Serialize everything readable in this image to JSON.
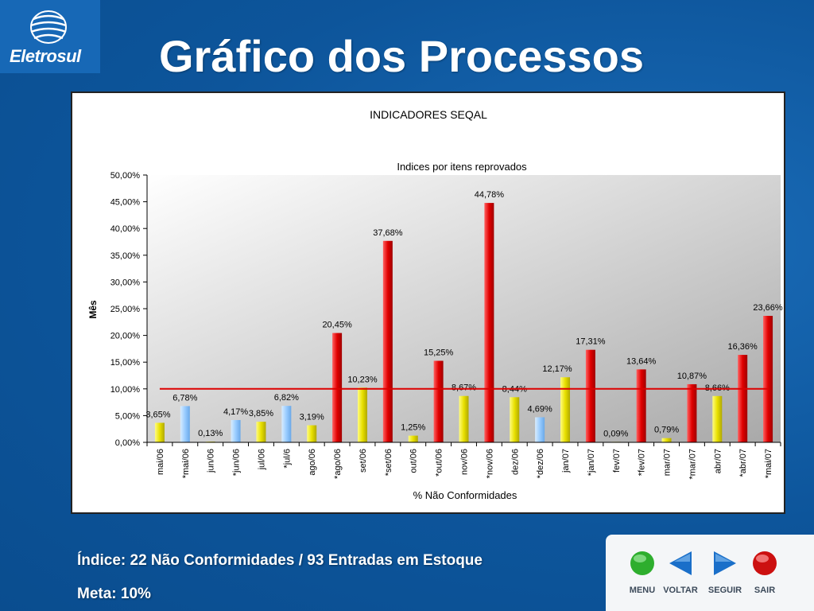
{
  "logo": {
    "text": "Eletrosul"
  },
  "slide": {
    "title": "Gráfico dos Processos",
    "footer_line1": "Índice: 22 Não Conformidades / 93 Entradas em Estoque",
    "footer_line2": "Meta: 10%"
  },
  "nav": {
    "menu": "MENU",
    "back": "VOLTAR",
    "next": "SEGUIR",
    "exit": "SAIR"
  },
  "colors": {
    "yellow": "#e8e000",
    "blue": "#99ccff",
    "red": "#e00000",
    "goal_line": "#dd0000"
  },
  "chart_data": {
    "type": "bar",
    "title": "INDICADORES SEQAL",
    "subtitle": "Indices por itens reprovados",
    "xlabel": "% Não Conformidades",
    "ylabel": "Mês",
    "ylim": [
      0,
      50
    ],
    "yticks": [
      "0,00%",
      "5,00%",
      "10,00%",
      "15,00%",
      "20,00%",
      "25,00%",
      "30,00%",
      "35,00%",
      "40,00%",
      "45,00%",
      "50,00%"
    ],
    "goal_value": 10,
    "grid": false,
    "categories": [
      "mai/06",
      "*mai/06",
      "jun/06",
      "*jun/06",
      "jul/06",
      "*jul/6",
      "ago/06",
      "*ago/06",
      "set/06",
      "*set/06",
      "out/06",
      "*out/06",
      "nov/06",
      "*nov/06",
      "dez/06",
      "*dez/06",
      "jan/07",
      "*jan/07",
      "fev/07",
      "*fev/07",
      "mar/07",
      "*mar/07",
      "abr/07",
      "*abr/07",
      "*mai/07"
    ],
    "values": [
      3.65,
      6.78,
      0.13,
      4.17,
      3.85,
      6.82,
      3.19,
      20.45,
      10.23,
      37.68,
      1.25,
      15.25,
      8.67,
      44.78,
      8.44,
      4.69,
      12.17,
      17.31,
      0.09,
      13.64,
      0.79,
      10.87,
      8.66,
      16.36,
      23.66
    ],
    "labels": [
      "3,65%",
      "6,78%",
      "0,13%",
      "4,17%",
      "3,85%",
      "6,82%",
      "3,19%",
      "20,45%",
      "10,23%",
      "37,68%",
      "1,25%",
      "15,25%",
      "8,67%",
      "44,78%",
      "8,44%",
      "4,69%",
      "12,17%",
      "17,31%",
      "0,09%",
      "13,64%",
      "0,79%",
      "10,87%",
      "8,66%",
      "16,36%",
      "23,66%"
    ],
    "bar_colors": [
      "yellow",
      "blue",
      "yellow",
      "blue",
      "yellow",
      "blue",
      "yellow",
      "red",
      "yellow",
      "red",
      "yellow",
      "red",
      "yellow",
      "red",
      "yellow",
      "blue",
      "yellow",
      "red",
      "yellow",
      "red",
      "yellow",
      "red",
      "yellow",
      "red",
      "red"
    ]
  }
}
